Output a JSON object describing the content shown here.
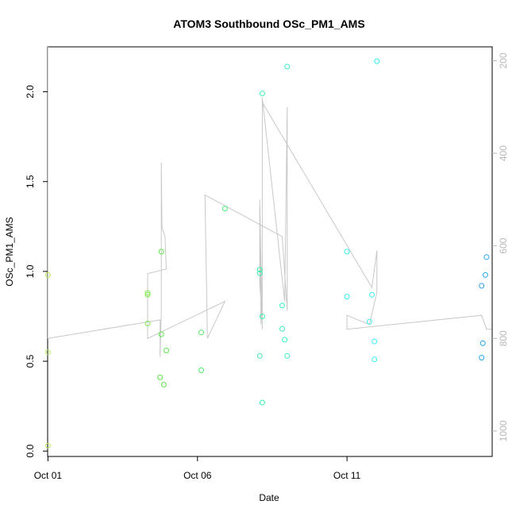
{
  "chart_data": {
    "type": "scatter",
    "title": "ATOM3 Southbound OSc_PM1_AMS",
    "xlabel": "Date",
    "ylabel": "OSc_PM1_AMS",
    "ylabel_right": "",
    "xlim": [
      "2016-09-30T23:45",
      "2016-10-15T20:30"
    ],
    "ylim": [
      -0.03,
      2.25
    ],
    "ylim_right": [
      1055,
      170
    ],
    "x_ticks": [
      {
        "value": "2016-10-01T00:00",
        "label": "Oct 01"
      },
      {
        "value": "2016-10-06T00:00",
        "label": "Oct 06"
      },
      {
        "value": "2016-10-11T00:00",
        "label": "Oct 11"
      }
    ],
    "y_ticks": [
      {
        "value": 0.0,
        "label": "0.0"
      },
      {
        "value": 0.5,
        "label": "0.5"
      },
      {
        "value": 1.0,
        "label": "1.0"
      },
      {
        "value": 1.5,
        "label": "1.5"
      },
      {
        "value": 2.0,
        "label": "2.0"
      }
    ],
    "y_ticks_right": [
      {
        "value": 200,
        "label": "200"
      },
      {
        "value": 400,
        "label": "400"
      },
      {
        "value": 600,
        "label": "600"
      },
      {
        "value": 800,
        "label": "800"
      },
      {
        "value": 1000,
        "label": "1000"
      }
    ],
    "grid": false,
    "point_series": {
      "marker": "open-circle",
      "color_gradient": [
        "#b5ea5a",
        "#4ee84e",
        "#3cf0a8",
        "#33f2f2",
        "#2ba6f2"
      ],
      "points": [
        {
          "x": "2016-10-01T00:00",
          "y": 0.03,
          "color": "#b5ea5a"
        },
        {
          "x": "2016-10-01T00:00",
          "y": 0.55,
          "color": "#b5ea5a"
        },
        {
          "x": "2016-10-01T00:00",
          "y": 0.98,
          "color": "#b5ea5a"
        },
        {
          "x": "2016-10-04T08:00",
          "y": 0.71,
          "color": "#80ea4c"
        },
        {
          "x": "2016-10-04T08:00",
          "y": 0.87,
          "color": "#80ea4c"
        },
        {
          "x": "2016-10-04T08:00",
          "y": 0.88,
          "color": "#80ea4c"
        },
        {
          "x": "2016-10-04T18:00",
          "y": 0.41,
          "color": "#5ee84a"
        },
        {
          "x": "2016-10-04T19:00",
          "y": 0.65,
          "color": "#5ee84a"
        },
        {
          "x": "2016-10-04T19:00",
          "y": 1.11,
          "color": "#5ee84a"
        },
        {
          "x": "2016-10-04T21:00",
          "y": 0.37,
          "color": "#5ee84a"
        },
        {
          "x": "2016-10-04T23:00",
          "y": 0.56,
          "color": "#5ee84a"
        },
        {
          "x": "2016-10-06T03:00",
          "y": 0.45,
          "color": "#4ee864"
        },
        {
          "x": "2016-10-06T03:00",
          "y": 0.66,
          "color": "#4ee864"
        },
        {
          "x": "2016-10-06T22:00",
          "y": 1.35,
          "color": "#46ea7e"
        },
        {
          "x": "2016-10-08T02:00",
          "y": 0.53,
          "color": "#3cf0a8"
        },
        {
          "x": "2016-10-08T02:00",
          "y": 0.99,
          "color": "#3cf0a8"
        },
        {
          "x": "2016-10-08T02:00",
          "y": 1.01,
          "color": "#3cf0a8"
        },
        {
          "x": "2016-10-08T04:00",
          "y": 0.27,
          "color": "#3cf0a8"
        },
        {
          "x": "2016-10-08T04:00",
          "y": 0.75,
          "color": "#3cf0a8"
        },
        {
          "x": "2016-10-08T04:00",
          "y": 1.99,
          "color": "#3cf0a8"
        },
        {
          "x": "2016-10-08T20:00",
          "y": 0.68,
          "color": "#38f0c4"
        },
        {
          "x": "2016-10-08T20:00",
          "y": 0.81,
          "color": "#38f0c4"
        },
        {
          "x": "2016-10-08T22:00",
          "y": 0.62,
          "color": "#38f0c4"
        },
        {
          "x": "2016-10-09T00:00",
          "y": 0.53,
          "color": "#38f0c4"
        },
        {
          "x": "2016-10-09T00:00",
          "y": 2.14,
          "color": "#38f0c4"
        },
        {
          "x": "2016-10-11T00:00",
          "y": 0.86,
          "color": "#33f2e6"
        },
        {
          "x": "2016-10-11T00:00",
          "y": 1.11,
          "color": "#33f2e6"
        },
        {
          "x": "2016-10-11T18:00",
          "y": 0.72,
          "color": "#33f2f2"
        },
        {
          "x": "2016-10-11T20:00",
          "y": 0.87,
          "color": "#33f2f2"
        },
        {
          "x": "2016-10-11T22:00",
          "y": 0.51,
          "color": "#33f2f2"
        },
        {
          "x": "2016-10-11T22:00",
          "y": 0.61,
          "color": "#33f2f2"
        },
        {
          "x": "2016-10-12T00:00",
          "y": 2.17,
          "color": "#33f2f2"
        },
        {
          "x": "2016-10-15T12:00",
          "y": 0.52,
          "color": "#2ba6f2"
        },
        {
          "x": "2016-10-15T12:00",
          "y": 0.92,
          "color": "#2ba6f2"
        },
        {
          "x": "2016-10-15T13:00",
          "y": 0.6,
          "color": "#2ba6f2"
        },
        {
          "x": "2016-10-15T15:00",
          "y": 0.98,
          "color": "#2ba6f2"
        },
        {
          "x": "2016-10-15T16:00",
          "y": 1.08,
          "color": "#2ba6f2"
        }
      ]
    },
    "line_series": {
      "axis": "right",
      "color": "#c8c8c8",
      "points": [
        {
          "x": "2016-10-01T00:00",
          "y": 170
        },
        {
          "x": "2016-10-01T00:00",
          "y": 800
        },
        {
          "x": "2016-10-04T18:00",
          "y": 760
        },
        {
          "x": "2016-10-04T18:00",
          "y": 840
        },
        {
          "x": "2016-10-04T19:00",
          "y": 740
        },
        {
          "x": "2016-10-04T19:00",
          "y": 420
        },
        {
          "x": "2016-10-04T19:30",
          "y": 560
        },
        {
          "x": "2016-10-04T22:00",
          "y": 580
        },
        {
          "x": "2016-10-04T23:00",
          "y": 650
        },
        {
          "x": "2016-10-04T23:00",
          "y": 650
        },
        {
          "x": "2016-10-04T08:00",
          "y": 660
        },
        {
          "x": "2016-10-04T08:00",
          "y": 800
        },
        {
          "x": "2016-10-06T22:00",
          "y": 720
        },
        {
          "x": "2016-10-06T08:00",
          "y": 800
        },
        {
          "x": "2016-10-06T06:00",
          "y": 490
        },
        {
          "x": "2016-10-08T20:00",
          "y": 580
        },
        {
          "x": "2016-10-09T00:00",
          "y": 740
        },
        {
          "x": "2016-10-09T00:00",
          "y": 300
        },
        {
          "x": "2016-10-08T22:00",
          "y": 720
        },
        {
          "x": "2016-10-08T04:00",
          "y": 280
        },
        {
          "x": "2016-10-08T04:00",
          "y": 780
        },
        {
          "x": "2016-10-08T02:00",
          "y": 500
        },
        {
          "x": "2016-10-08T03:00",
          "y": 770
        },
        {
          "x": "2016-10-08T02:00",
          "y": 510
        },
        {
          "x": "2016-10-08T02:00",
          "y": 680
        },
        {
          "x": "2016-10-08T04:00",
          "y": 770
        },
        {
          "x": "2016-10-08T04:00",
          "y": 290
        },
        {
          "x": "2016-10-11T20:00",
          "y": 690
        },
        {
          "x": "2016-10-12T00:00",
          "y": 610
        },
        {
          "x": "2016-10-12T00:00",
          "y": 700
        },
        {
          "x": "2016-10-11T18:00",
          "y": 770
        },
        {
          "x": "2016-10-11T00:00",
          "y": 750
        },
        {
          "x": "2016-10-11T00:00",
          "y": 780
        },
        {
          "x": "2016-10-15T12:00",
          "y": 750
        },
        {
          "x": "2016-10-15T16:00",
          "y": 780
        },
        {
          "x": "2016-10-15T20:00",
          "y": 780
        }
      ]
    }
  }
}
